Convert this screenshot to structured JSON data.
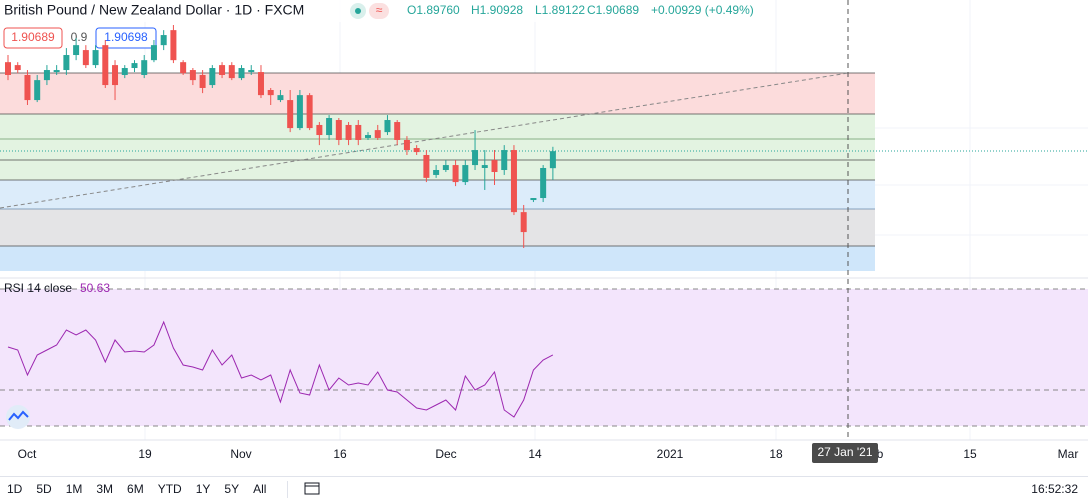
{
  "header": {
    "title": "British Pound / New Zealand Dollar · 1D · FXCM",
    "ohlc": [
      "O1.89760",
      "H1.90928",
      "L1.89122",
      "C1.90689",
      "+0.00929 (+0.49%)"
    ],
    "spread": "0.9",
    "ask": "1.90698"
  },
  "chart_data": {
    "type": "candlestick",
    "candles": [
      [
        1.9555,
        1.9594,
        1.9457,
        1.9485
      ],
      [
        1.9539,
        1.9555,
        1.9495,
        1.9512
      ],
      [
        1.9485,
        1.9512,
        1.9321,
        1.9348
      ],
      [
        1.9348,
        1.9485,
        1.9337,
        1.9457
      ],
      [
        1.9457,
        1.9539,
        1.943,
        1.9512
      ],
      [
        1.9501,
        1.9539,
        1.9485,
        1.9512
      ],
      [
        1.9512,
        1.9632,
        1.9485,
        1.9594
      ],
      [
        1.9594,
        1.9687,
        1.9566,
        1.9648
      ],
      [
        1.9621,
        1.9648,
        1.9523,
        1.9539
      ],
      [
        1.9539,
        1.9648,
        1.9523,
        1.9621
      ],
      [
        1.9648,
        1.9676,
        1.9414,
        1.943
      ],
      [
        1.9539,
        1.9566,
        1.9348,
        1.943
      ],
      [
        1.9485,
        1.9539,
        1.9468,
        1.9523
      ],
      [
        1.9523,
        1.9566,
        1.9501,
        1.955
      ],
      [
        1.9485,
        1.9594,
        1.9468,
        1.9566
      ],
      [
        1.9566,
        1.9676,
        1.9555,
        1.9648
      ],
      [
        1.9648,
        1.973,
        1.9621,
        1.9703
      ],
      [
        1.973,
        1.9758,
        1.955,
        1.9566
      ],
      [
        1.9555,
        1.9566,
        1.9485,
        1.9495
      ],
      [
        1.9512,
        1.9523,
        1.943,
        1.9457
      ],
      [
        1.9485,
        1.9512,
        1.9386,
        1.9414
      ],
      [
        1.943,
        1.9539,
        1.9414,
        1.9523
      ],
      [
        1.9539,
        1.9555,
        1.9468,
        1.9485
      ],
      [
        1.9539,
        1.9555,
        1.9457,
        1.9468
      ],
      [
        1.9468,
        1.9539,
        1.9457,
        1.9523
      ],
      [
        1.9501,
        1.9539,
        1.9485,
        1.9512
      ],
      [
        1.9501,
        1.9539,
        1.9359,
        1.9375
      ],
      [
        1.9403,
        1.9414,
        1.9321,
        1.9375
      ],
      [
        1.9348,
        1.9403,
        1.9337,
        1.9375
      ],
      [
        1.9348,
        1.9403,
        1.9173,
        1.9195
      ],
      [
        1.9195,
        1.9403,
        1.9184,
        1.9375
      ],
      [
        1.9375,
        1.9386,
        1.9184,
        1.9195
      ],
      [
        1.9212,
        1.9228,
        1.9102,
        1.9157
      ],
      [
        1.9157,
        1.9266,
        1.913,
        1.925
      ],
      [
        1.9239,
        1.925,
        1.9102,
        1.913
      ],
      [
        1.9212,
        1.9228,
        1.9102,
        1.913
      ],
      [
        1.9212,
        1.9239,
        1.9102,
        1.913
      ],
      [
        1.9141,
        1.9173,
        1.913,
        1.9157
      ],
      [
        1.9184,
        1.9212,
        1.913,
        1.9141
      ],
      [
        1.9173,
        1.9266,
        1.9157,
        1.9239
      ],
      [
        1.9228,
        1.9239,
        1.9102,
        1.913
      ],
      [
        1.913,
        1.9151,
        1.9048,
        1.9075
      ],
      [
        1.9086,
        1.9102,
        1.9048,
        1.9064
      ],
      [
        1.9048,
        1.9075,
        1.89,
        1.8923
      ],
      [
        1.8939,
        1.8993,
        1.8923,
        1.8966
      ],
      [
        1.8966,
        1.902,
        1.8955,
        1.8993
      ],
      [
        1.8993,
        1.902,
        1.8878,
        1.89
      ],
      [
        1.89,
        1.902,
        1.8884,
        1.8993
      ],
      [
        1.8993,
        1.9184,
        1.8966,
        1.9075
      ],
      [
        1.8977,
        1.9075,
        1.8857,
        1.8993
      ],
      [
        1.902,
        1.9075,
        1.8884,
        1.8955
      ],
      [
        1.8966,
        1.9102,
        1.8939,
        1.9075
      ],
      [
        1.9075,
        1.9102,
        1.872,
        1.8736
      ],
      [
        1.8736,
        1.8775,
        1.854,
        1.8627
      ],
      [
        1.8802,
        1.8813,
        1.8791,
        1.8813
      ],
      [
        1.8813,
        1.8993,
        1.8791,
        1.8977
      ],
      [
        1.8976,
        1.90928,
        1.89122,
        1.90689
      ]
    ],
    "up_color": "#26a69a",
    "down_color": "#ef5350",
    "rsi": {
      "name": "RSI 14 close",
      "color": "#9c27b0",
      "values": [
        53.0,
        52.1,
        44.6,
        50.6,
        52.1,
        53.6,
        58.1,
        56.6,
        58.1,
        55.1,
        48.5,
        55.1,
        51.5,
        51.8,
        51.5,
        53.6,
        60.5,
        52.7,
        47.6,
        47.0,
        46.1,
        52.1,
        47.6,
        50.6,
        43.7,
        44.6,
        43.1,
        44.6,
        36.5,
        46.1,
        39.2,
        38.6,
        47.6,
        40.1,
        43.7,
        41.6,
        42.2,
        41.6,
        45.5,
        40.1,
        39.5,
        37.1,
        34.7,
        34.1,
        35.6,
        37.1,
        34.1,
        44.3,
        40.1,
        41.6,
        45.5,
        34.1,
        32.0,
        37.1,
        46.1,
        49.1,
        50.63
      ]
    },
    "x_labels": [
      "Oct",
      "19",
      "Nov",
      "16",
      "Dec",
      "14",
      "2021",
      "18",
      "b",
      "15",
      "Mar"
    ],
    "crosshair_label": "27 Jan '21"
  },
  "toolbar": {
    "ranges": [
      "1D",
      "5D",
      "1M",
      "3M",
      "6M",
      "YTD",
      "1Y",
      "5Y",
      "All"
    ],
    "time": "16:52:32"
  }
}
